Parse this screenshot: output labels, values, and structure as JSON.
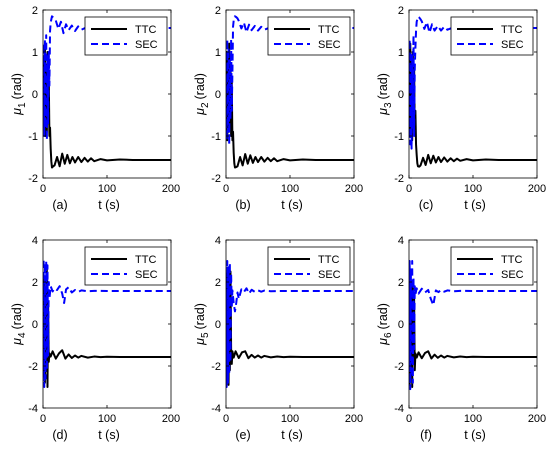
{
  "chart_data": [
    {
      "type": "line",
      "panel_label": "(a)",
      "ylabel": {
        "greek": "μ",
        "sub": "1",
        "unit": "(rad)"
      },
      "xlabel": "t (s)",
      "xlim": [
        0,
        200
      ],
      "ylim": [
        -2,
        2
      ],
      "xticks": [
        0,
        100,
        200
      ],
      "yticks": [
        -2,
        -1,
        0,
        1,
        2
      ],
      "legend": {
        "position": "top-right",
        "entries": [
          "TTC",
          "SEC"
        ]
      },
      "series": [
        {
          "name": "TTC",
          "color": "#000000",
          "style": "solid",
          "final_value": -1.57,
          "x": [
            0,
            1,
            2,
            3,
            4,
            5,
            6,
            7,
            8,
            9,
            10,
            11,
            12,
            13,
            14,
            16,
            18,
            22,
            26,
            30,
            34,
            38,
            42,
            46,
            50,
            55,
            60,
            65,
            70,
            75,
            80,
            90,
            100,
            120,
            140,
            160,
            180,
            200
          ],
          "y": [
            0.2,
            0.9,
            -0.8,
            1.1,
            -1.0,
            0.7,
            -0.9,
            1.0,
            -0.6,
            0.4,
            -1.0,
            -0.8,
            -1.3,
            -1.6,
            -1.75,
            -1.72,
            -1.7,
            -1.5,
            -1.72,
            -1.42,
            -1.66,
            -1.45,
            -1.65,
            -1.5,
            -1.63,
            -1.5,
            -1.62,
            -1.52,
            -1.61,
            -1.53,
            -1.6,
            -1.55,
            -1.58,
            -1.56,
            -1.57,
            -1.57,
            -1.57,
            -1.57
          ]
        },
        {
          "name": "SEC",
          "color": "#0000ff",
          "style": "dashed",
          "final_value": 1.57,
          "x": [
            0,
            1,
            2,
            3,
            4,
            5,
            6,
            7,
            8,
            9,
            10,
            11,
            12,
            14,
            16,
            18,
            20,
            24,
            28,
            32,
            36,
            40,
            45,
            50,
            55,
            60,
            70,
            80,
            100,
            120,
            140,
            160,
            180,
            200
          ],
          "y": [
            -0.3,
            1.2,
            -1.0,
            1.3,
            -0.8,
            1.4,
            -1.1,
            0.9,
            -0.7,
            1.0,
            0.2,
            1.5,
            1.7,
            1.85,
            1.82,
            1.78,
            1.75,
            1.55,
            1.72,
            1.45,
            1.66,
            1.52,
            1.63,
            1.5,
            1.61,
            1.53,
            1.6,
            1.55,
            1.57,
            1.57,
            1.57,
            1.57,
            1.57,
            1.57
          ]
        }
      ]
    },
    {
      "type": "line",
      "panel_label": "(b)",
      "ylabel": {
        "greek": "μ",
        "sub": "2",
        "unit": "(rad)"
      },
      "xlabel": "t (s)",
      "xlim": [
        0,
        200
      ],
      "ylim": [
        -2,
        2
      ],
      "xticks": [
        0,
        100,
        200
      ],
      "yticks": [
        -2,
        -1,
        0,
        1,
        2
      ],
      "legend": {
        "position": "top-right",
        "entries": [
          "TTC",
          "SEC"
        ]
      },
      "series": [
        {
          "name": "TTC",
          "color": "#000000",
          "style": "solid",
          "final_value": -1.57,
          "x": [
            0,
            1,
            2,
            3,
            4,
            5,
            6,
            7,
            8,
            9,
            10,
            11,
            12,
            13,
            14,
            16,
            18,
            22,
            26,
            30,
            34,
            38,
            42,
            46,
            50,
            55,
            60,
            65,
            70,
            75,
            80,
            90,
            100,
            120,
            140,
            160,
            180,
            200
          ],
          "y": [
            -0.2,
            1.0,
            -1.1,
            0.8,
            -0.9,
            1.2,
            -0.7,
            0.6,
            -1.0,
            0.3,
            -1.1,
            -0.9,
            -1.4,
            -1.65,
            -1.75,
            -1.74,
            -1.72,
            -1.5,
            -1.7,
            -1.43,
            -1.66,
            -1.46,
            -1.64,
            -1.5,
            -1.62,
            -1.5,
            -1.61,
            -1.52,
            -1.6,
            -1.53,
            -1.6,
            -1.55,
            -1.58,
            -1.56,
            -1.57,
            -1.57,
            -1.57,
            -1.57
          ]
        },
        {
          "name": "SEC",
          "color": "#0000ff",
          "style": "dashed",
          "final_value": 1.57,
          "x": [
            0,
            1,
            2,
            3,
            4,
            5,
            6,
            7,
            8,
            9,
            10,
            11,
            12,
            14,
            16,
            18,
            20,
            24,
            28,
            32,
            36,
            40,
            45,
            50,
            55,
            60,
            70,
            80,
            100,
            120,
            140,
            160,
            180,
            200
          ],
          "y": [
            0.4,
            -1.1,
            1.3,
            -0.9,
            1.1,
            -1.2,
            0.8,
            -0.6,
            1.3,
            -0.4,
            0.5,
            1.6,
            1.75,
            1.85,
            1.83,
            1.8,
            1.74,
            1.56,
            1.7,
            1.47,
            1.65,
            1.52,
            1.62,
            1.51,
            1.6,
            1.53,
            1.59,
            1.55,
            1.57,
            1.57,
            1.57,
            1.57,
            1.57,
            1.57
          ]
        }
      ]
    },
    {
      "type": "line",
      "panel_label": "(c)",
      "ylabel": {
        "greek": "μ",
        "sub": "3",
        "unit": "(rad)"
      },
      "xlabel": "t (s)",
      "xlim": [
        0,
        200
      ],
      "ylim": [
        -2,
        2
      ],
      "xticks": [
        0,
        100,
        200
      ],
      "yticks": [
        -2,
        -1,
        0,
        1,
        2
      ],
      "legend": {
        "position": "top-right",
        "entries": [
          "TTC",
          "SEC"
        ]
      },
      "series": [
        {
          "name": "TTC",
          "color": "#000000",
          "style": "solid",
          "final_value": -1.57,
          "x": [
            0,
            1,
            2,
            3,
            4,
            5,
            6,
            7,
            8,
            9,
            10,
            11,
            12,
            13,
            14,
            16,
            18,
            22,
            26,
            30,
            34,
            38,
            42,
            46,
            50,
            55,
            60,
            65,
            70,
            75,
            80,
            90,
            100,
            120,
            140,
            160,
            180,
            200
          ],
          "y": [
            0.1,
            -1.0,
            1.2,
            -0.8,
            0.9,
            -1.1,
            1.0,
            -0.5,
            0.7,
            -0.9,
            -0.4,
            -1.2,
            -1.45,
            -1.65,
            -1.72,
            -1.73,
            -1.7,
            -1.52,
            -1.69,
            -1.45,
            -1.65,
            -1.47,
            -1.63,
            -1.5,
            -1.62,
            -1.51,
            -1.61,
            -1.53,
            -1.6,
            -1.54,
            -1.59,
            -1.55,
            -1.58,
            -1.56,
            -1.57,
            -1.57,
            -1.57,
            -1.57
          ]
        },
        {
          "name": "SEC",
          "color": "#0000ff",
          "style": "dashed",
          "final_value": 1.57,
          "x": [
            0,
            1,
            2,
            3,
            4,
            5,
            6,
            7,
            8,
            9,
            10,
            11,
            12,
            14,
            16,
            18,
            20,
            24,
            28,
            32,
            36,
            40,
            45,
            50,
            55,
            60,
            70,
            80,
            100,
            120,
            140,
            160,
            180,
            200
          ],
          "y": [
            -0.5,
            1.3,
            -1.2,
            1.0,
            -1.3,
            0.9,
            -0.8,
            1.4,
            -1.0,
            0.6,
            1.1,
            1.5,
            1.72,
            1.84,
            1.82,
            1.78,
            1.73,
            1.55,
            1.71,
            1.46,
            1.66,
            1.51,
            1.62,
            1.51,
            1.6,
            1.53,
            1.59,
            1.55,
            1.57,
            1.57,
            1.57,
            1.57,
            1.57,
            1.57
          ]
        }
      ]
    },
    {
      "type": "line",
      "panel_label": "(d)",
      "ylabel": {
        "greek": "μ",
        "sub": "4",
        "unit": "(rad)"
      },
      "xlabel": "t (s)",
      "xlim": [
        0,
        200
      ],
      "ylim": [
        -4,
        4
      ],
      "xticks": [
        0,
        100,
        200
      ],
      "yticks": [
        -4,
        -2,
        0,
        2,
        4
      ],
      "legend": {
        "position": "top-right",
        "entries": [
          "TTC",
          "SEC"
        ]
      },
      "series": [
        {
          "name": "TTC",
          "color": "#000000",
          "style": "solid",
          "final_value": -1.57,
          "x": [
            0,
            1,
            2,
            3,
            4,
            5,
            6,
            7,
            8,
            9,
            10,
            12,
            15,
            20,
            25,
            30,
            35,
            40,
            45,
            50,
            55,
            60,
            70,
            80,
            90,
            100,
            120,
            140,
            160,
            180,
            200
          ],
          "y": [
            0.5,
            -2.5,
            2.2,
            -2.8,
            1.5,
            -2.0,
            2.6,
            -3.0,
            1.0,
            -1.8,
            -1.4,
            -1.55,
            -1.3,
            -1.65,
            -1.4,
            -1.25,
            -1.65,
            -1.45,
            -1.62,
            -1.5,
            -1.6,
            -1.52,
            -1.6,
            -1.55,
            -1.58,
            -1.56,
            -1.57,
            -1.57,
            -1.57,
            -1.57,
            -1.57
          ]
        },
        {
          "name": "SEC",
          "color": "#0000ff",
          "style": "dashed",
          "final_value": 1.57,
          "x": [
            0,
            1,
            2,
            3,
            4,
            5,
            6,
            7,
            8,
            9,
            10,
            12,
            15,
            18,
            22,
            26,
            30,
            33,
            36,
            40,
            45,
            50,
            55,
            60,
            70,
            80,
            100,
            120,
            140,
            160,
            180,
            200
          ],
          "y": [
            -1.0,
            3.1,
            -3.0,
            2.9,
            -2.6,
            3.0,
            -2.2,
            2.8,
            -1.5,
            2.0,
            1.2,
            1.8,
            1.55,
            1.7,
            1.62,
            1.8,
            1.45,
            1.0,
            1.65,
            1.75,
            1.5,
            1.62,
            1.53,
            1.6,
            1.56,
            1.58,
            1.57,
            1.57,
            1.57,
            1.57,
            1.57,
            1.57
          ]
        }
      ]
    },
    {
      "type": "line",
      "panel_label": "(e)",
      "ylabel": {
        "greek": "μ",
        "sub": "5",
        "unit": "(rad)"
      },
      "xlabel": "t (s)",
      "xlim": [
        0,
        200
      ],
      "ylim": [
        -4,
        4
      ],
      "xticks": [
        0,
        100,
        200
      ],
      "yticks": [
        -4,
        -2,
        0,
        2,
        4
      ],
      "legend": {
        "position": "top-right",
        "entries": [
          "TTC",
          "SEC"
        ]
      },
      "series": [
        {
          "name": "TTC",
          "color": "#000000",
          "style": "solid",
          "final_value": -1.57,
          "x": [
            0,
            1,
            2,
            3,
            4,
            5,
            6,
            7,
            8,
            9,
            10,
            12,
            15,
            20,
            25,
            30,
            35,
            40,
            45,
            50,
            55,
            60,
            70,
            80,
            90,
            100,
            120,
            140,
            160,
            180,
            200
          ],
          "y": [
            -0.4,
            2.4,
            -2.7,
            2.0,
            -2.9,
            1.6,
            -2.2,
            2.5,
            -1.2,
            -1.9,
            -1.3,
            -1.6,
            -1.3,
            -1.62,
            -1.35,
            -1.3,
            -1.63,
            -1.47,
            -1.6,
            -1.5,
            -1.6,
            -1.52,
            -1.59,
            -1.55,
            -1.58,
            -1.56,
            -1.57,
            -1.57,
            -1.57,
            -1.57,
            -1.57
          ]
        },
        {
          "name": "SEC",
          "color": "#0000ff",
          "style": "dashed",
          "final_value": 1.57,
          "x": [
            0,
            1,
            2,
            3,
            4,
            5,
            6,
            7,
            8,
            9,
            10,
            12,
            14,
            16,
            18,
            20,
            24,
            28,
            32,
            36,
            40,
            45,
            50,
            55,
            60,
            70,
            80,
            100,
            120,
            140,
            160,
            180,
            200
          ],
          "y": [
            1.2,
            -3.0,
            3.0,
            -2.8,
            2.7,
            -2.4,
            2.9,
            -1.8,
            2.4,
            0.8,
            1.6,
            1.0,
            0.6,
            1.0,
            1.5,
            1.2,
            1.65,
            1.52,
            1.7,
            1.45,
            1.63,
            1.53,
            1.6,
            1.54,
            1.59,
            1.56,
            1.57,
            1.57,
            1.57,
            1.57,
            1.57,
            1.57,
            1.57
          ]
        }
      ]
    },
    {
      "type": "line",
      "panel_label": "(f)",
      "ylabel": {
        "greek": "μ",
        "sub": "6",
        "unit": "(rad)"
      },
      "xlabel": "t (s)",
      "xlim": [
        0,
        200
      ],
      "ylim": [
        -4,
        4
      ],
      "xticks": [
        0,
        100,
        200
      ],
      "yticks": [
        -4,
        -2,
        0,
        2,
        4
      ],
      "legend": {
        "position": "top-right",
        "entries": [
          "TTC",
          "SEC"
        ]
      },
      "series": [
        {
          "name": "TTC",
          "color": "#000000",
          "style": "solid",
          "final_value": -1.57,
          "x": [
            0,
            1,
            2,
            3,
            4,
            5,
            6,
            7,
            8,
            9,
            10,
            12,
            15,
            20,
            25,
            30,
            35,
            40,
            45,
            50,
            55,
            60,
            70,
            80,
            90,
            100,
            120,
            140,
            160,
            180,
            200
          ],
          "y": [
            0.8,
            -2.9,
            2.3,
            -2.4,
            1.8,
            -3.0,
            2.0,
            -1.6,
            1.2,
            -2.2,
            -1.4,
            -1.6,
            -1.35,
            -1.63,
            -1.38,
            -1.3,
            -1.64,
            -1.46,
            -1.61,
            -1.5,
            -1.6,
            -1.52,
            -1.59,
            -1.55,
            -1.58,
            -1.56,
            -1.57,
            -1.57,
            -1.57,
            -1.57,
            -1.57
          ]
        },
        {
          "name": "SEC",
          "color": "#0000ff",
          "style": "dashed",
          "final_value": 1.57,
          "x": [
            0,
            1,
            2,
            3,
            4,
            5,
            6,
            7,
            8,
            9,
            10,
            12,
            15,
            20,
            25,
            30,
            34,
            38,
            42,
            46,
            50,
            55,
            60,
            70,
            80,
            100,
            120,
            140,
            160,
            180,
            200
          ],
          "y": [
            -2.0,
            3.0,
            -3.1,
            2.6,
            -2.5,
            3.0,
            -2.8,
            2.2,
            -1.2,
            1.8,
            1.4,
            1.7,
            1.45,
            1.68,
            1.5,
            1.62,
            1.2,
            0.9,
            1.6,
            1.52,
            1.62,
            1.54,
            1.6,
            1.56,
            1.58,
            1.57,
            1.57,
            1.57,
            1.57,
            1.57,
            1.57
          ]
        }
      ]
    }
  ]
}
